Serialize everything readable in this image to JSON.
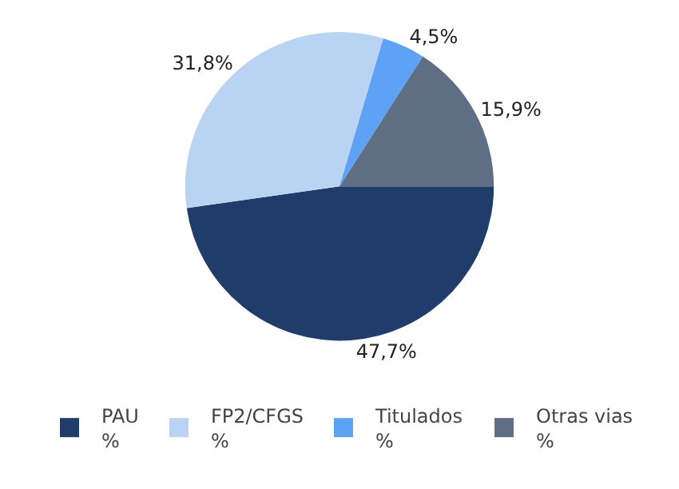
{
  "chart_data": {
    "type": "pie",
    "categories": [
      "PAU\n%",
      "FP2/CFGS\n%",
      "Titulados\n%",
      "Otras vias\n%"
    ],
    "values": [
      47.7,
      31.8,
      4.5,
      15.9
    ],
    "value_labels": [
      "47,7%",
      "31,8%",
      "4,5%",
      "15,9%"
    ],
    "colors": [
      "#1f3c6a",
      "#b9d3f3",
      "#5ea2f5",
      "#5f6e83"
    ],
    "legend": "bottom"
  }
}
